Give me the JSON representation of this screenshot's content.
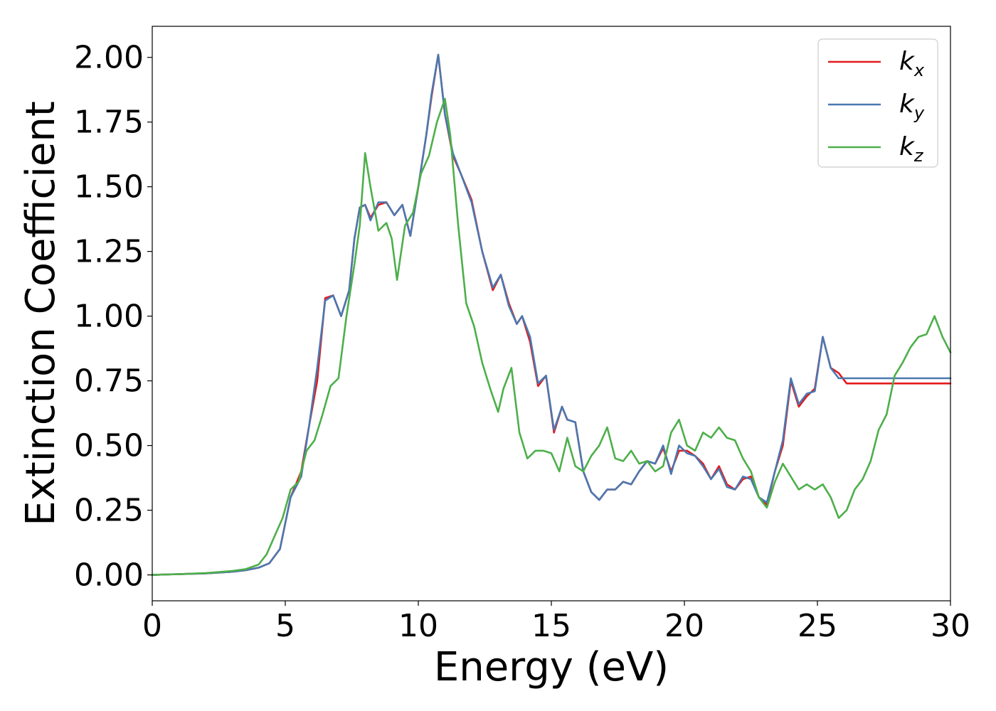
{
  "chart_data": {
    "type": "line",
    "title": "",
    "xlabel": "Energy (eV)",
    "ylabel": "Extinction Coefficient",
    "xlim": [
      0,
      30
    ],
    "ylim": [
      -0.1,
      2.12
    ],
    "xticks": [
      0,
      5,
      10,
      15,
      20,
      25,
      30
    ],
    "xtick_labels": [
      "0",
      "5",
      "10",
      "15",
      "20",
      "25",
      "30"
    ],
    "yticks": [
      0,
      0.25,
      0.5,
      0.75,
      1.0,
      1.25,
      1.5,
      1.75,
      2.0
    ],
    "ytick_labels": [
      "0.00",
      "0.25",
      "0.50",
      "0.75",
      "1.00",
      "1.25",
      "1.50",
      "1.75",
      "2.00"
    ],
    "grid": false,
    "legend_position": "top-right",
    "series": [
      {
        "name_base": "k",
        "name_sub": "x",
        "color": "#e41a1c",
        "x": [
          0,
          1,
          2,
          3,
          3.5,
          4,
          4.4,
          4.8,
          5.2,
          5.6,
          5.9,
          6.2,
          6.5,
          6.8,
          7.1,
          7.4,
          7.6,
          7.8,
          8.0,
          8.2,
          8.5,
          8.8,
          9.1,
          9.4,
          9.7,
          10.0,
          10.3,
          10.5,
          10.75,
          11.0,
          11.3,
          11.6,
          12.0,
          12.4,
          12.8,
          13.1,
          13.4,
          13.7,
          13.9,
          14.2,
          14.5,
          14.8,
          15.1,
          15.4,
          15.6,
          15.9,
          16.2,
          16.5,
          16.8,
          17.1,
          17.4,
          17.7,
          18.0,
          18.3,
          18.6,
          18.9,
          19.2,
          19.5,
          19.8,
          20.1,
          20.4,
          20.7,
          21.0,
          21.3,
          21.6,
          21.9,
          22.2,
          22.5,
          22.8,
          23.1,
          23.4,
          23.7,
          24.0,
          24.3,
          24.6,
          24.9,
          25.2,
          25.5,
          25.8,
          26.1,
          26.4,
          26.7,
          27.0,
          27.3,
          27.6,
          27.9,
          28.2,
          28.5,
          28.8,
          29.1,
          29.4,
          29.7,
          30.0
        ],
        "y": [
          0.0,
          0.003,
          0.006,
          0.012,
          0.018,
          0.028,
          0.045,
          0.1,
          0.3,
          0.4,
          0.58,
          0.75,
          1.07,
          1.08,
          1.0,
          1.1,
          1.3,
          1.42,
          1.43,
          1.38,
          1.43,
          1.44,
          1.39,
          1.43,
          1.31,
          1.5,
          1.7,
          1.85,
          2.01,
          1.78,
          1.62,
          1.55,
          1.45,
          1.25,
          1.1,
          1.16,
          1.05,
          0.97,
          1.0,
          0.9,
          0.73,
          0.77,
          0.55,
          0.65,
          0.6,
          0.59,
          0.4,
          0.32,
          0.29,
          0.33,
          0.33,
          0.36,
          0.35,
          0.4,
          0.44,
          0.43,
          0.49,
          0.4,
          0.48,
          0.48,
          0.46,
          0.43,
          0.37,
          0.42,
          0.35,
          0.33,
          0.37,
          0.38,
          0.3,
          0.27,
          0.4,
          0.5,
          0.75,
          0.65,
          0.69,
          0.72,
          0.92,
          0.8,
          0.78,
          0.74,
          0.74,
          0.74,
          0.74,
          0.74,
          0.74,
          0.74,
          0.74,
          0.74,
          0.74,
          0.74,
          0.74,
          0.74,
          0.74
        ]
      },
      {
        "name_base": "k",
        "name_sub": "y",
        "color": "#4a78b0",
        "x": [
          0,
          1,
          2,
          3,
          3.5,
          4,
          4.4,
          4.8,
          5.2,
          5.6,
          5.9,
          6.2,
          6.5,
          6.8,
          7.1,
          7.4,
          7.6,
          7.8,
          8.0,
          8.2,
          8.5,
          8.8,
          9.1,
          9.4,
          9.7,
          10.0,
          10.3,
          10.5,
          10.75,
          11.0,
          11.3,
          11.6,
          12.0,
          12.4,
          12.8,
          13.1,
          13.4,
          13.7,
          13.9,
          14.2,
          14.5,
          14.8,
          15.1,
          15.4,
          15.6,
          15.9,
          16.2,
          16.5,
          16.8,
          17.1,
          17.4,
          17.7,
          18.0,
          18.3,
          18.6,
          18.9,
          19.2,
          19.5,
          19.8,
          20.1,
          20.4,
          20.7,
          21.0,
          21.3,
          21.6,
          21.9,
          22.2,
          22.5,
          22.8,
          23.1,
          23.4,
          23.7,
          24.0,
          24.3,
          24.6,
          24.9,
          25.2,
          25.5,
          25.8,
          26.1,
          26.4,
          26.7,
          27.0,
          27.3,
          27.6,
          27.9,
          28.2,
          28.5,
          28.8,
          29.1,
          29.4,
          29.7,
          30.0
        ],
        "y": [
          0.0,
          0.003,
          0.006,
          0.012,
          0.018,
          0.028,
          0.045,
          0.1,
          0.3,
          0.38,
          0.58,
          0.8,
          1.06,
          1.08,
          1.0,
          1.1,
          1.3,
          1.42,
          1.43,
          1.37,
          1.44,
          1.44,
          1.39,
          1.43,
          1.31,
          1.5,
          1.7,
          1.86,
          2.01,
          1.78,
          1.63,
          1.55,
          1.44,
          1.25,
          1.11,
          1.16,
          1.04,
          0.97,
          1.0,
          0.92,
          0.74,
          0.77,
          0.56,
          0.65,
          0.6,
          0.59,
          0.4,
          0.32,
          0.29,
          0.33,
          0.33,
          0.36,
          0.35,
          0.4,
          0.44,
          0.43,
          0.5,
          0.39,
          0.5,
          0.47,
          0.46,
          0.42,
          0.37,
          0.41,
          0.34,
          0.33,
          0.38,
          0.37,
          0.3,
          0.28,
          0.4,
          0.52,
          0.76,
          0.66,
          0.7,
          0.71,
          0.92,
          0.8,
          0.76,
          0.76,
          0.76,
          0.76,
          0.76,
          0.76,
          0.76,
          0.76,
          0.76,
          0.76,
          0.76,
          0.76,
          0.76,
          0.76,
          0.76
        ]
      },
      {
        "name_base": "k",
        "name_sub": "z",
        "color": "#4daf4a",
        "x": [
          0,
          1,
          2,
          3,
          3.5,
          4,
          4.3,
          4.6,
          4.9,
          5.2,
          5.5,
          5.8,
          6.1,
          6.4,
          6.7,
          7.0,
          7.3,
          7.6,
          7.8,
          8.0,
          8.2,
          8.5,
          8.8,
          9.0,
          9.2,
          9.5,
          9.8,
          10.1,
          10.4,
          10.7,
          11.0,
          11.2,
          11.5,
          11.8,
          12.1,
          12.4,
          12.7,
          13.0,
          13.2,
          13.5,
          13.8,
          14.1,
          14.4,
          14.7,
          15.0,
          15.3,
          15.6,
          15.9,
          16.2,
          16.5,
          16.8,
          17.1,
          17.4,
          17.7,
          18.0,
          18.3,
          18.6,
          18.9,
          19.2,
          19.5,
          19.8,
          20.1,
          20.4,
          20.7,
          21.0,
          21.3,
          21.6,
          21.9,
          22.2,
          22.5,
          22.8,
          23.1,
          23.4,
          23.7,
          24.0,
          24.3,
          24.6,
          24.9,
          25.2,
          25.5,
          25.8,
          26.1,
          26.4,
          26.7,
          27.0,
          27.3,
          27.6,
          27.9,
          28.2,
          28.5,
          28.8,
          29.1,
          29.4,
          29.7,
          30.0
        ],
        "y": [
          0.0,
          0.003,
          0.007,
          0.015,
          0.022,
          0.04,
          0.08,
          0.15,
          0.22,
          0.33,
          0.36,
          0.48,
          0.52,
          0.62,
          0.73,
          0.76,
          1.0,
          1.2,
          1.35,
          1.63,
          1.5,
          1.33,
          1.36,
          1.3,
          1.14,
          1.35,
          1.4,
          1.55,
          1.62,
          1.75,
          1.84,
          1.7,
          1.35,
          1.05,
          0.96,
          0.82,
          0.72,
          0.63,
          0.72,
          0.8,
          0.55,
          0.45,
          0.48,
          0.48,
          0.47,
          0.4,
          0.53,
          0.42,
          0.4,
          0.46,
          0.5,
          0.57,
          0.45,
          0.44,
          0.48,
          0.43,
          0.44,
          0.4,
          0.42,
          0.55,
          0.6,
          0.5,
          0.48,
          0.55,
          0.53,
          0.57,
          0.53,
          0.52,
          0.45,
          0.4,
          0.3,
          0.26,
          0.36,
          0.43,
          0.38,
          0.33,
          0.35,
          0.33,
          0.35,
          0.3,
          0.22,
          0.25,
          0.33,
          0.37,
          0.44,
          0.56,
          0.62,
          0.77,
          0.82,
          0.88,
          0.92,
          0.93,
          1.0,
          0.92,
          0.86
        ]
      }
    ]
  }
}
